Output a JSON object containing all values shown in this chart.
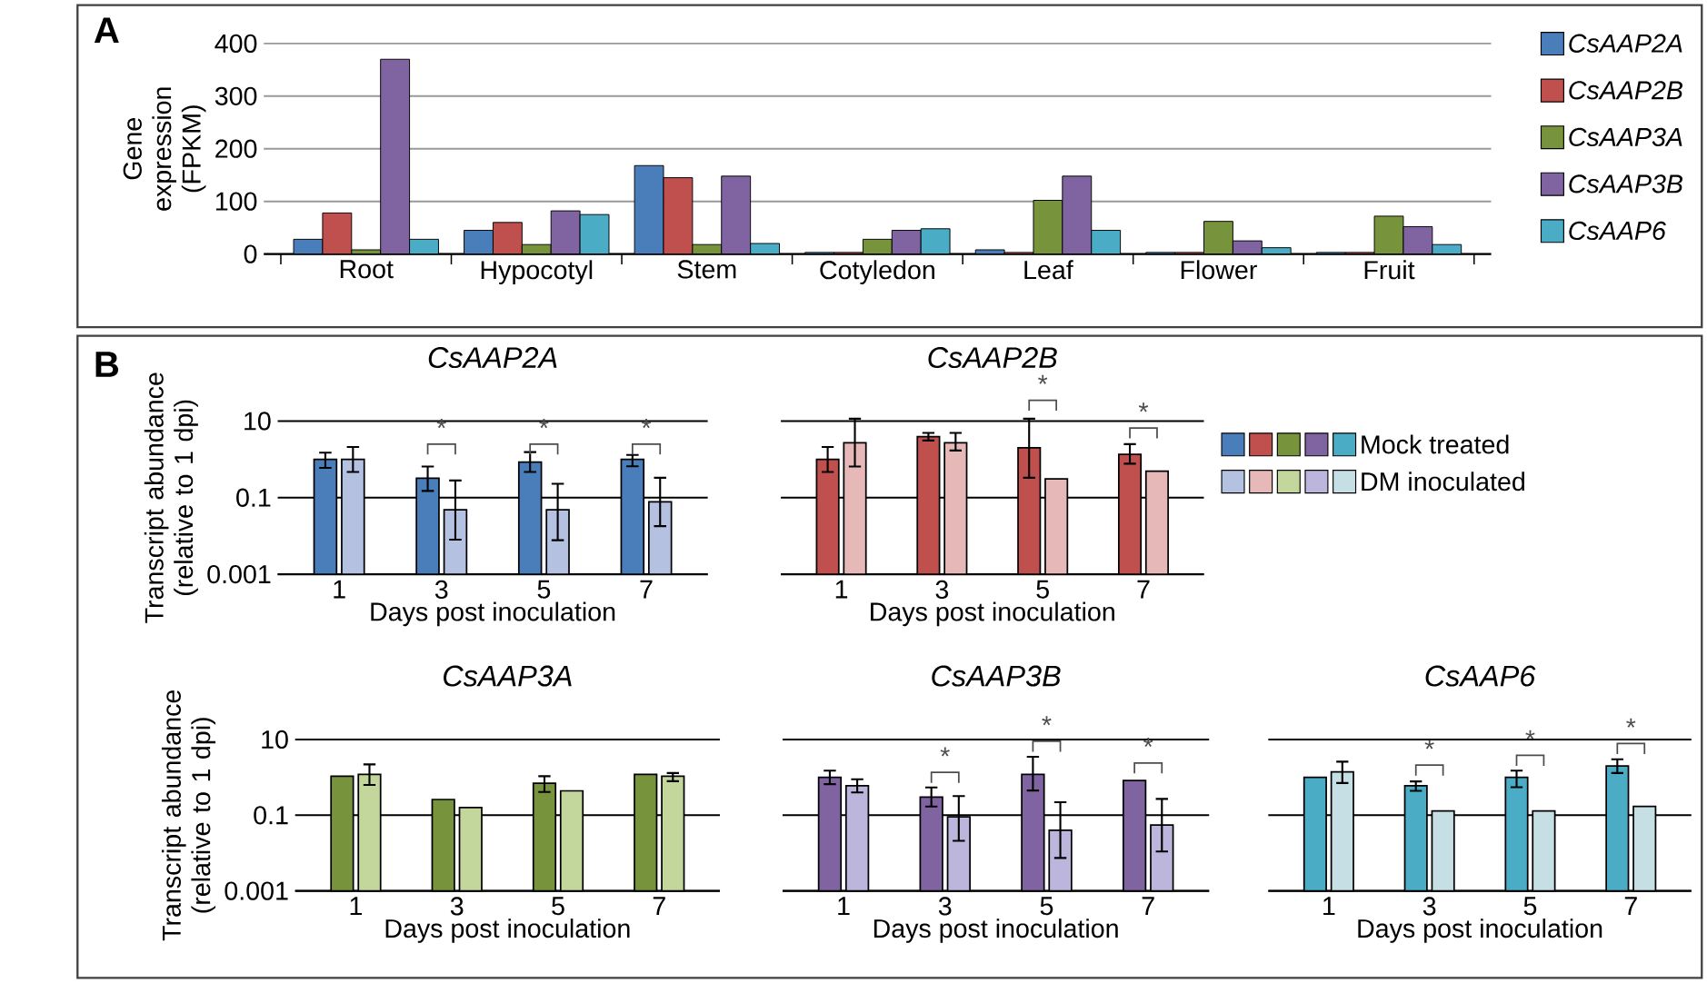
{
  "chart_data": [
    {
      "type": "bar",
      "categories": [
        "Root",
        "Hypocotyl",
        "Stem",
        "Cotyledon",
        "Leaf",
        "Flower",
        "Fruit"
      ],
      "ylabel": "Gene expression (FPKM)",
      "ylim": [
        0,
        400
      ],
      "yticks": [
        0,
        100,
        200,
        300,
        400
      ],
      "grid": "y",
      "legend": "right",
      "annotations": [
        "A"
      ],
      "series": [
        {
          "name": "CsAAP2A",
          "color": "#4a7ebb",
          "values": [
            28,
            45,
            168,
            3,
            8,
            3,
            3
          ]
        },
        {
          "name": "CsAAP2B",
          "color": "#c0504d",
          "values": [
            78,
            60,
            145,
            3,
            3,
            3,
            3
          ]
        },
        {
          "name": "CsAAP3A",
          "color": "#77933c",
          "values": [
            8,
            18,
            18,
            28,
            102,
            62,
            72
          ]
        },
        {
          "name": "CsAAP3B",
          "color": "#8064a2",
          "values": [
            370,
            82,
            148,
            45,
            148,
            25,
            52
          ]
        },
        {
          "name": "CsAAP6",
          "color": "#4bacc6",
          "values": [
            28,
            75,
            20,
            48,
            45,
            12,
            18
          ]
        }
      ]
    },
    {
      "type": "bar",
      "title": "CsAAP2A",
      "categories": [
        "1",
        "3",
        "5",
        "7"
      ],
      "xlabel": "Days post inoculation",
      "ylabel": "Transcript abundance (relative to 1 dpi)",
      "log": "y",
      "ylim": [
        0.001,
        10
      ],
      "yticks": [
        0.001,
        0.1,
        10
      ],
      "grid": "y",
      "annotations": [
        "B",
        "*",
        "*",
        "*"
      ],
      "series": [
        {
          "color": "#4a7ebb",
          "values": [
            1.0,
            0.32,
            0.85,
            1.0
          ],
          "errors": [
            [
              0.6,
              1.5
            ],
            [
              0.15,
              0.65
            ],
            [
              0.47,
              1.55
            ],
            [
              0.66,
              1.3
            ]
          ]
        },
        {
          "color": "#b4c1e1",
          "values": [
            1.0,
            0.048,
            0.048,
            0.078
          ],
          "errors": [
            [
              0.47,
              2.1
            ],
            [
              0.008,
              0.28
            ],
            [
              0.0077,
              0.23
            ],
            [
              0.018,
              0.33
            ]
          ]
        }
      ]
    },
    {
      "type": "bar",
      "title": "CsAAP2B",
      "categories": [
        "1",
        "3",
        "5",
        "7"
      ],
      "xlabel": "Days post inoculation",
      "log": "y",
      "ylim": [
        0.001,
        10
      ],
      "yticks": [
        0.001,
        0.1,
        10
      ],
      "grid": "y",
      "tick_labels": "x",
      "legend": "right",
      "annotations": [
        "*",
        "*"
      ],
      "series": [
        {
          "name": "Mock treated",
          "color": "#c0504d",
          "values": [
            1.0,
            3.9,
            2.0,
            1.35
          ],
          "errors": [
            [
              0.47,
              2.1
            ],
            [
              3.1,
              4.9
            ],
            [
              0.33,
              11.5
            ],
            [
              0.77,
              2.5
            ]
          ]
        },
        {
          "name": "DM inoculated",
          "color": "#e6b9b8",
          "values": [
            2.7,
            2.7,
            0.31,
            0.49
          ],
          "errors": [
            [
              0.65,
              11.5
            ],
            [
              1.7,
              4.9
            ],
            null,
            null
          ]
        }
      ]
    },
    {
      "type": "bar",
      "title": "CsAAP3A",
      "categories": [
        "1",
        "3",
        "5",
        "7"
      ],
      "xlabel": "Days post inoculation",
      "ylabel": "Transcript abundance (relative to 1 dpi)",
      "log": "y",
      "ylim": [
        0.001,
        10
      ],
      "yticks": [
        0.001,
        0.1,
        10
      ],
      "grid": "y",
      "series": [
        {
          "color": "#77933c",
          "values": [
            1.07,
            0.26,
            0.7,
            1.2
          ],
          "errors": [
            null,
            null,
            [
              0.41,
              1.07
            ],
            null
          ]
        },
        {
          "color": "#c3d69b",
          "values": [
            1.2,
            0.16,
            0.44,
            1.07
          ],
          "errors": [
            [
              0.63,
              2.2
            ],
            null,
            null,
            [
              0.79,
              1.3
            ]
          ]
        }
      ]
    },
    {
      "type": "bar",
      "title": "CsAAP3B",
      "categories": [
        "1",
        "3",
        "5",
        "7"
      ],
      "xlabel": "Days post inoculation",
      "log": "y",
      "ylim": [
        0.001,
        10
      ],
      "yticks": [
        0.001,
        0.1,
        10
      ],
      "grid": "y",
      "tick_labels": "x",
      "annotations": [
        "*",
        "*",
        "*"
      ],
      "series": [
        {
          "color": "#8064a2",
          "values": [
            1.0,
            0.3,
            1.2,
            0.82
          ],
          "errors": [
            [
              0.66,
              1.5
            ],
            [
              0.17,
              0.54
            ],
            [
              0.45,
              3.5
            ],
            null
          ]
        },
        {
          "color": "#bdb6dc",
          "values": [
            0.6,
            0.09,
            0.04,
            0.055
          ],
          "errors": [
            [
              0.4,
              0.89
            ],
            [
              0.021,
              0.32
            ],
            [
              0.0074,
              0.22
            ],
            [
              0.011,
              0.27
            ]
          ]
        }
      ]
    },
    {
      "type": "bar",
      "title": "CsAAP6",
      "categories": [
        "1",
        "3",
        "5",
        "7"
      ],
      "xlabel": "Days post inoculation",
      "log": "y",
      "ylim": [
        0.001,
        10
      ],
      "yticks": [
        0.001,
        0.1,
        10
      ],
      "grid": "y",
      "tick_labels": "x",
      "annotations": [
        "*",
        "*",
        "*"
      ],
      "series": [
        {
          "color": "#4bacc6",
          "values": [
            1.0,
            0.6,
            1.0,
            2.0
          ],
          "errors": [
            null,
            [
              0.44,
              0.78
            ],
            [
              0.55,
              1.5
            ],
            [
              1.3,
              3.0
            ]
          ]
        },
        {
          "color": "#c6dfe4",
          "values": [
            1.4,
            0.13,
            0.13,
            0.17
          ],
          "errors": [
            [
              0.71,
              2.6
            ],
            null,
            null,
            null
          ]
        }
      ]
    }
  ]
}
